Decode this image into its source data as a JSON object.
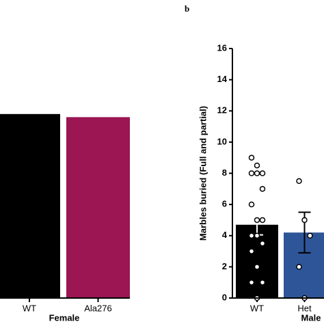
{
  "chart_data": [
    {
      "type": "bar",
      "group_label": "Female",
      "categories": [
        "WT",
        "Ala276"
      ],
      "values": [
        11.8,
        11.6
      ],
      "colors": [
        "#000000",
        "#9b1653"
      ],
      "ylim": [
        0,
        16
      ]
    },
    {
      "type": "bar",
      "panel_label": "b",
      "ylabel": "Marbles buried (Full and partial)",
      "group_label": "Male",
      "categories": [
        "WT",
        "Het"
      ],
      "values": [
        4.7,
        4.2
      ],
      "errors": [
        0.65,
        1.3
      ],
      "colors": [
        "#000000",
        "#2e5597"
      ],
      "points": [
        [
          9,
          8.5,
          8,
          8,
          8,
          7,
          6,
          5,
          5,
          4,
          4,
          3.5,
          3,
          2,
          1,
          1,
          0
        ],
        [
          7.5,
          5,
          4,
          2,
          0
        ]
      ],
      "ylim": [
        0,
        16
      ],
      "yticks": [
        0,
        2,
        4,
        6,
        8,
        10,
        12,
        14,
        16
      ]
    }
  ]
}
